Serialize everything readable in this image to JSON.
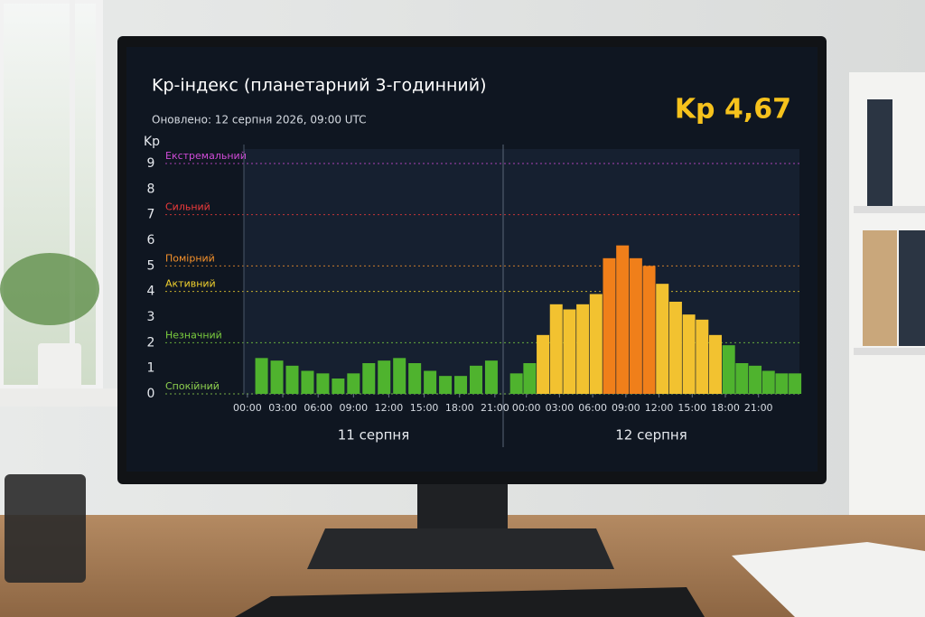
{
  "chart_data": {
    "type": "bar",
    "title": "Kp-індекс (планетарний 3-годинний)",
    "subtitle": "Оновлено: 12 серпня 2026, 09:00 UTC",
    "current": {
      "value": 4.67,
      "label": "Kp 4,67"
    },
    "ylabel": "Kp",
    "ylim": [
      0,
      9
    ],
    "yticks": [
      0,
      1,
      2,
      3,
      4,
      5,
      6,
      7,
      8,
      9
    ],
    "levels": [
      {
        "label": "Спокійний",
        "value": 0,
        "color": "#8fd14f",
        "bar_color": "#4fb32e"
      },
      {
        "label": "Незначний",
        "value": 2,
        "color": "#7ccf3f",
        "bar_color": "#f2c230"
      },
      {
        "label": "Активний",
        "value": 4,
        "color": "#f2d22e",
        "bar_color": "#f2c230"
      },
      {
        "label": "Помірний",
        "value": 5,
        "color": "#f7922b",
        "bar_color": "#f07f1a"
      },
      {
        "label": "Сильний",
        "value": 7,
        "color": "#ef3b3b",
        "bar_color": "#e23a2a"
      },
      {
        "label": "Екстремальний",
        "value": 9,
        "color": "#d04bd8",
        "bar_color": "#c23ad0"
      }
    ],
    "panels": [
      {
        "label": "11 серпня",
        "xlim": [
          -0.3,
          21.7
        ],
        "xticks": [
          {
            "value": 0,
            "label": "00:00"
          },
          {
            "value": 3,
            "label": "03:00"
          },
          {
            "value": 6,
            "label": "06:00"
          },
          {
            "value": 9,
            "label": "09:00"
          },
          {
            "value": 12,
            "label": "12:00"
          },
          {
            "value": 15,
            "label": "15:00"
          },
          {
            "value": 18,
            "label": "18:00"
          },
          {
            "value": 21,
            "label": "21:00"
          }
        ],
        "x": [
          1.2,
          2.5,
          3.8,
          5.1,
          6.4,
          7.7,
          9,
          10.3,
          11.6,
          12.9,
          14.2,
          15.5,
          16.8,
          18.1,
          19.4,
          20.7
        ],
        "values": [
          1.4,
          1.3,
          1.1,
          0.9,
          0.8,
          0.6,
          0.8,
          1.2,
          1.3,
          1.4,
          1.2,
          0.9,
          0.7,
          0.7,
          1.1,
          1.3
        ]
      },
      {
        "label": "12 серпня",
        "xlim": [
          -2.1,
          24.7
        ],
        "xticks": [
          {
            "value": 0,
            "label": "00:00"
          },
          {
            "value": 3,
            "label": "03:00"
          },
          {
            "value": 6,
            "label": "06:00"
          },
          {
            "value": 9,
            "label": "09:00"
          },
          {
            "value": 12,
            "label": "12:00"
          },
          {
            "value": 15,
            "label": "15:00"
          },
          {
            "value": 18,
            "label": "18:00"
          },
          {
            "value": 21,
            "label": "21:00"
          }
        ],
        "x": [
          -0.9,
          0.3,
          1.5,
          2.7,
          3.9,
          5.1,
          6.3,
          7.5,
          8.7,
          9.9,
          11.1,
          12.3,
          13.5,
          14.7,
          15.9,
          17.1,
          18.3,
          19.5,
          20.7,
          21.9,
          23.1,
          24.3
        ],
        "values": [
          0.8,
          1.2,
          2.3,
          3.5,
          3.3,
          3.5,
          3.9,
          5.3,
          5.8,
          5.3,
          5.0,
          4.3,
          3.6,
          3.1,
          2.9,
          2.3,
          1.9,
          1.2,
          1.1,
          0.9,
          0.8,
          0.8
        ]
      }
    ],
    "grid": true
  }
}
